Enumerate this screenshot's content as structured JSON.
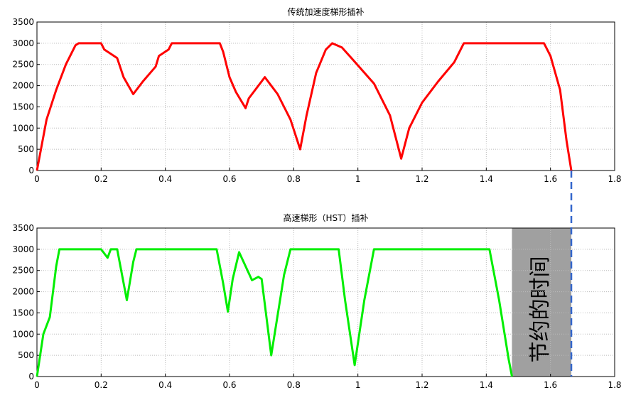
{
  "chart_data": [
    {
      "type": "line",
      "title": "传统加速度梯形插补",
      "color": "#ff0000",
      "x": [
        0,
        0.01,
        0.03,
        0.06,
        0.09,
        0.12,
        0.13,
        0.2,
        0.21,
        0.23,
        0.25,
        0.27,
        0.3,
        0.33,
        0.37,
        0.38,
        0.41,
        0.42,
        0.57,
        0.58,
        0.6,
        0.62,
        0.65,
        0.66,
        0.71,
        0.75,
        0.79,
        0.82,
        0.84,
        0.87,
        0.9,
        0.92,
        0.95,
        0.98,
        1.05,
        1.1,
        1.135,
        1.16,
        1.2,
        1.25,
        1.3,
        1.33,
        1.58,
        1.6,
        1.63,
        1.65,
        1.665
      ],
      "values": [
        0,
        400,
        1200,
        1900,
        2500,
        2950,
        3000,
        3000,
        2850,
        2750,
        2650,
        2200,
        1800,
        2100,
        2450,
        2700,
        2850,
        3000,
        3000,
        2800,
        2200,
        1850,
        1470,
        1700,
        2200,
        1800,
        1200,
        500,
        1300,
        2300,
        2850,
        3000,
        2900,
        2650,
        2050,
        1300,
        280,
        1000,
        1600,
        2100,
        2550,
        3000,
        3000,
        2700,
        1900,
        700,
        0
      ],
      "xlim": [
        0,
        1.8
      ],
      "xticks": [
        0,
        0.2,
        0.4,
        0.6,
        0.8,
        1,
        1.2,
        1.4,
        1.6,
        1.8
      ],
      "ylim": [
        0,
        3500
      ],
      "yticks": [
        0,
        500,
        1000,
        1500,
        2000,
        2500,
        3000,
        3500
      ],
      "grid": true,
      "reference_line": {
        "x": 1.665,
        "color": "#3366cc"
      }
    },
    {
      "type": "line",
      "title": "高速梯形（HST）插补",
      "color": "#00ee00",
      "x": [
        0,
        0.01,
        0.02,
        0.04,
        0.05,
        0.06,
        0.07,
        0.2,
        0.22,
        0.23,
        0.25,
        0.28,
        0.3,
        0.31,
        0.56,
        0.58,
        0.595,
        0.61,
        0.63,
        0.65,
        0.67,
        0.69,
        0.7,
        0.73,
        0.77,
        0.79,
        0.94,
        0.96,
        0.99,
        1.02,
        1.05,
        1.41,
        1.44,
        1.47,
        1.48
      ],
      "values": [
        0,
        500,
        1000,
        1400,
        2000,
        2600,
        3000,
        3000,
        2800,
        3000,
        3000,
        1800,
        2700,
        3000,
        3000,
        2200,
        1530,
        2300,
        2930,
        2600,
        2270,
        2350,
        2300,
        500,
        2400,
        3000,
        3000,
        1800,
        270,
        1800,
        3000,
        3000,
        1800,
        400,
        0
      ],
      "xlim": [
        0,
        1.8
      ],
      "xticks": [
        0,
        0.2,
        0.4,
        0.6,
        0.8,
        1,
        1.2,
        1.4,
        1.6,
        1.8
      ],
      "ylim": [
        0,
        3500
      ],
      "yticks": [
        0,
        500,
        1000,
        1500,
        2000,
        2500,
        3000,
        3500
      ],
      "grid": true,
      "shaded_region": {
        "x": [
          1.48,
          1.665
        ],
        "label": "节约的时间",
        "color": "#a0a0a0"
      }
    }
  ]
}
